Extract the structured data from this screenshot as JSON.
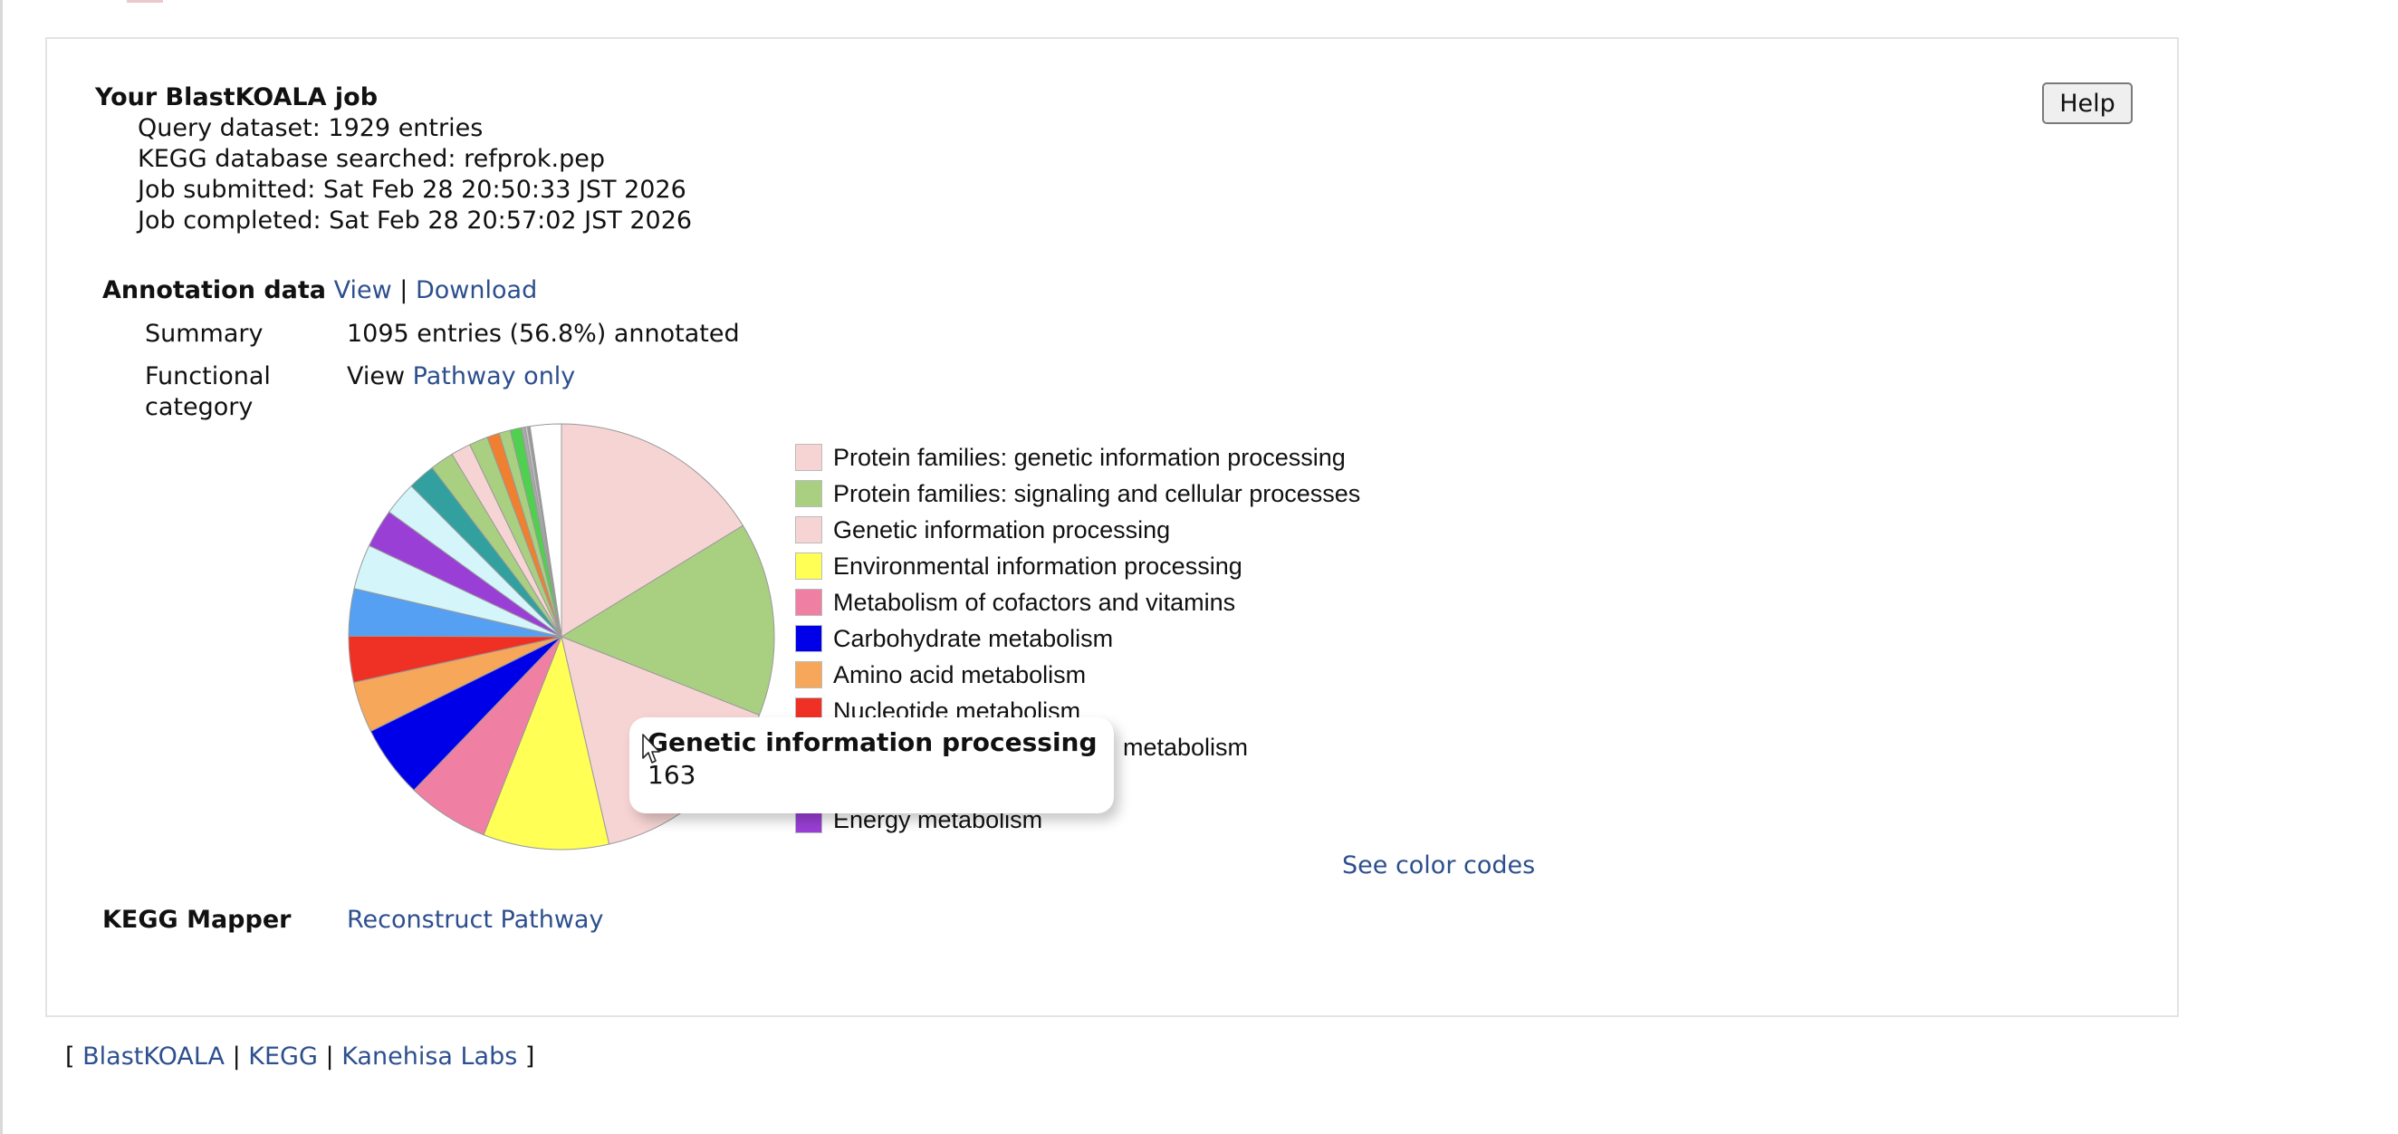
{
  "job": {
    "heading": "Your BlastKOALA job",
    "query_dataset": "Query dataset: 1929 entries",
    "database": "KEGG database searched: refprok.pep",
    "submitted": "Job submitted: Sat Feb 28 20:50:33 JST 2026",
    "completed": "Job completed: Sat Feb 28 20:57:02 JST 2026",
    "help_label": "Help"
  },
  "annotation": {
    "label": "Annotation data",
    "view_link": "View",
    "separator": "|",
    "download_link": "Download",
    "summary_label": "Summary",
    "summary_value": "1095 entries (56.8%) annotated",
    "functional_label_line1": "Functional",
    "functional_label_line2": "category",
    "view_prefix": "View",
    "pathway_only_link": "Pathway only",
    "see_color_codes_link": "See color codes"
  },
  "legend": [
    {
      "label": "Protein families: genetic information processing",
      "color": "#f7d4d4"
    },
    {
      "label": "Protein families: signaling and cellular processes",
      "color": "#a9d080"
    },
    {
      "label": "Genetic information processing",
      "color": "#f7d4d4"
    },
    {
      "label": "Environmental information processing",
      "color": "#ffff55"
    },
    {
      "label": "Metabolism of cofactors and vitamins",
      "color": "#f07fa4"
    },
    {
      "label": "Carbohydrate metabolism",
      "color": "#0000e8"
    },
    {
      "label": "Amino acid metabolism",
      "color": "#f6a75a"
    },
    {
      "label": "Nucleotide metabolism",
      "color": "#ee3124"
    },
    {
      "label": "metabolism",
      "color": "#55a0f2"
    },
    {
      "label": "",
      "color": "#d4f6fa"
    },
    {
      "label": "Energy metabolism",
      "color": "#9a3fd6"
    }
  ],
  "tooltip": {
    "title": "Genetic information processing",
    "value": "163"
  },
  "mapper": {
    "label": "KEGG Mapper",
    "link": "Reconstruct Pathway"
  },
  "footer": {
    "open_bracket": "[",
    "links": [
      "BlastKOALA",
      "KEGG",
      "Kanehisa Labs"
    ],
    "separator": "|",
    "close_bracket": "]"
  },
  "chart_data": {
    "type": "pie",
    "title": "Functional category",
    "start_angle": "12 o'clock, clockwise",
    "estimated_total": 1061,
    "slices": [
      {
        "label": "Protein families: genetic information processing",
        "value": 172,
        "color": "#f7d4d4"
      },
      {
        "label": "Protein families: signaling and cellular processes",
        "value": 156,
        "color": "#a9d080"
      },
      {
        "label": "Genetic information processing",
        "value": 163,
        "color": "#f7d4d4"
      },
      {
        "label": "Environmental information processing",
        "value": 101,
        "color": "#ffff55"
      },
      {
        "label": "Metabolism of cofactors and vitamins",
        "value": 66,
        "color": "#f07fa4"
      },
      {
        "label": "Carbohydrate metabolism",
        "value": 58,
        "color": "#0000e8"
      },
      {
        "label": "Amino acid metabolism",
        "value": 41,
        "color": "#f6a75a"
      },
      {
        "label": "Nucleotide metabolism",
        "value": 37,
        "color": "#ee3124"
      },
      {
        "label": "… metabolism",
        "value": 38,
        "color": "#55a0f2"
      },
      {
        "label": "",
        "value": 36,
        "color": "#d4f6fa"
      },
      {
        "label": "Energy metabolism",
        "value": 31,
        "color": "#9a3fd6"
      },
      {
        "label": "",
        "value": 27,
        "color": "#d4f6fa"
      },
      {
        "label": "",
        "value": 22,
        "color": "#33a0a0"
      },
      {
        "label": "",
        "value": 19,
        "color": "#a9d080"
      },
      {
        "label": "",
        "value": 16,
        "color": "#f7d4d4"
      },
      {
        "label": "",
        "value": 15,
        "color": "#a9d080"
      },
      {
        "label": "",
        "value": 10,
        "color": "#f07f30"
      },
      {
        "label": "",
        "value": 9,
        "color": "#a9d080"
      },
      {
        "label": "",
        "value": 9,
        "color": "#4fd04f"
      },
      {
        "label": "",
        "value": 3,
        "color": "#aaaaaa"
      },
      {
        "label": "",
        "value": 2,
        "color": "#c8c8c8"
      },
      {
        "label": "",
        "value": 2,
        "color": "#999999"
      },
      {
        "label": "",
        "value": 25,
        "color": "#ffffff"
      }
    ],
    "highlighted": {
      "label": "Genetic information processing",
      "value": 163
    }
  }
}
